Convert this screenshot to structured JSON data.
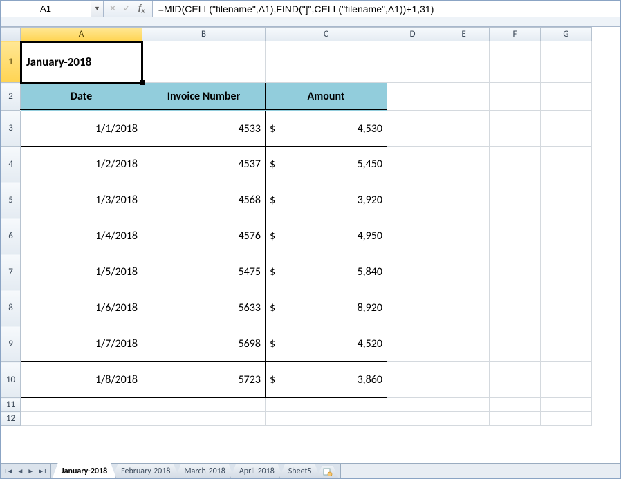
{
  "nameBox": "A1",
  "formula": "=MID(CELL(\"filename\",A1),FIND(\"]\",CELL(\"filename\",A1))+1,31)",
  "columns": [
    "A",
    "B",
    "C",
    "D",
    "E",
    "F",
    "G"
  ],
  "activeCol": "A",
  "activeRow": 1,
  "titleCell": "January-2018",
  "headers": {
    "date": "Date",
    "invoice": "Invoice Number",
    "amount": "Amount"
  },
  "currencySymbol": "$",
  "rows": [
    {
      "date": "1/1/2018",
      "invoice": "4533",
      "amount": "4,530"
    },
    {
      "date": "1/2/2018",
      "invoice": "4537",
      "amount": "5,450"
    },
    {
      "date": "1/3/2018",
      "invoice": "4568",
      "amount": "3,920"
    },
    {
      "date": "1/4/2018",
      "invoice": "4576",
      "amount": "4,950"
    },
    {
      "date": "1/5/2018",
      "invoice": "5475",
      "amount": "5,840"
    },
    {
      "date": "1/6/2018",
      "invoice": "5633",
      "amount": "8,920"
    },
    {
      "date": "1/7/2018",
      "invoice": "5698",
      "amount": "4,520"
    },
    {
      "date": "1/8/2018",
      "invoice": "5723",
      "amount": "3,860"
    }
  ],
  "colors": {
    "headerFill": "#92cddc",
    "gridLine": "#d4d9de",
    "activeHighlight": "#ffd452"
  },
  "tabs": [
    {
      "label": "January-2018",
      "active": true
    },
    {
      "label": "February-2018",
      "active": false
    },
    {
      "label": "March-2018",
      "active": false
    },
    {
      "label": "April-2018",
      "active": false
    },
    {
      "label": "Sheet5",
      "active": false
    }
  ]
}
